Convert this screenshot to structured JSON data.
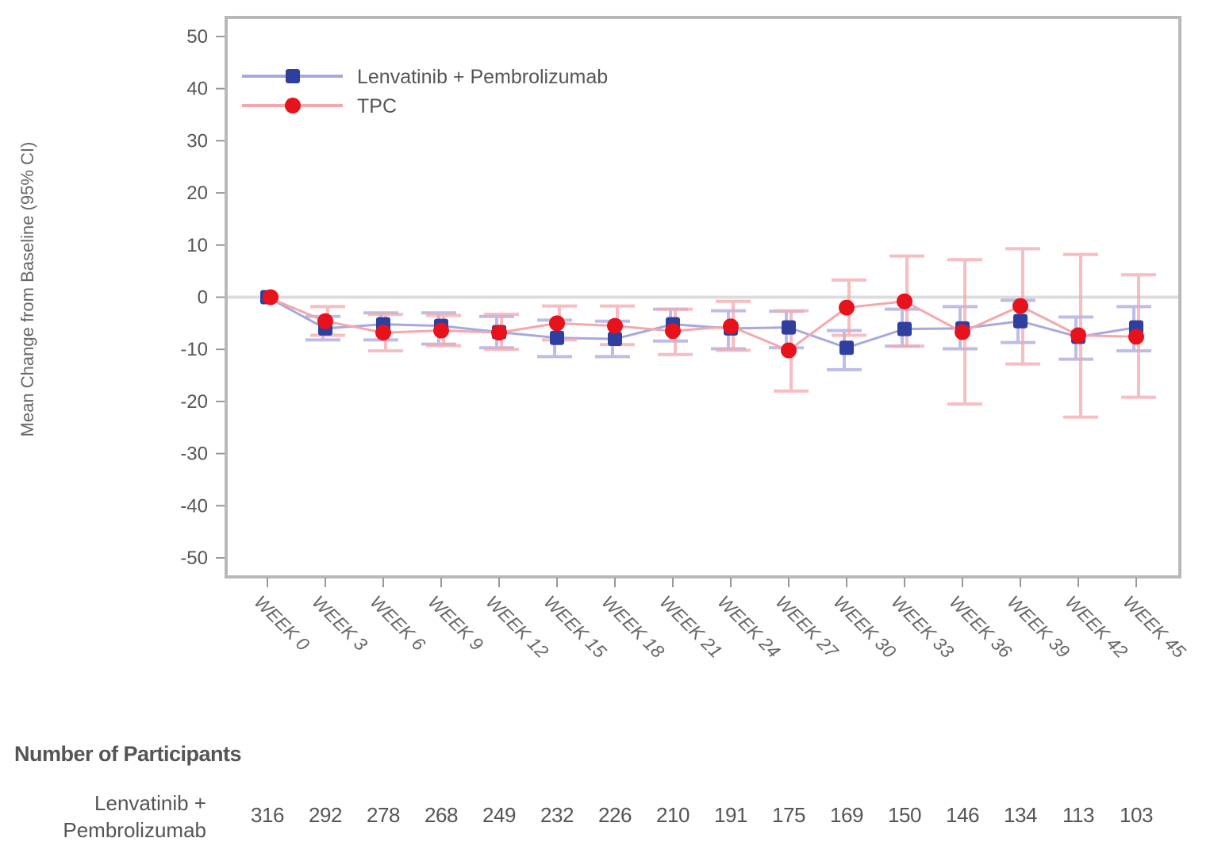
{
  "chart_data": {
    "type": "line",
    "title": "",
    "xlabel": "",
    "ylabel": "Mean Change from Baseline (95% CI)",
    "ylim": [
      -50,
      50
    ],
    "yticks": [
      50,
      40,
      30,
      20,
      10,
      0,
      -10,
      -20,
      -30,
      -40,
      -50
    ],
    "grid": false,
    "reference_line_y": 0,
    "legend_position": "upper left (inside plot)",
    "categories": [
      "WEEK 0",
      "WEEK 3",
      "WEEK 6",
      "WEEK 9",
      "WEEK 12",
      "WEEK 15",
      "WEEK 18",
      "WEEK 21",
      "WEEK 24",
      "WEEK 27",
      "WEEK 30",
      "WEEK 33",
      "WEEK 36",
      "WEEK 39",
      "WEEK 42",
      "WEEK 45"
    ],
    "series": [
      {
        "name": "Lenvatinib + Pembrolizumab",
        "color": "#2e3fa0",
        "line_color": "#a8a8e0",
        "marker": "square",
        "values": [
          0,
          -6.0,
          -5.2,
          -5.5,
          -6.7,
          -7.8,
          -8.0,
          -5.2,
          -6.0,
          -5.8,
          -9.7,
          -6.1,
          -6.0,
          -4.6,
          -7.6,
          -5.8
        ],
        "ci_lower": [
          0,
          -8.2,
          -8.2,
          -9.0,
          -9.7,
          -11.4,
          -11.4,
          -8.4,
          -9.9,
          -9.7,
          -13.9,
          -9.4,
          -9.9,
          -8.7,
          -11.9,
          -10.3
        ],
        "ci_upper": [
          0,
          -3.7,
          -3.0,
          -3.0,
          -3.7,
          -4.4,
          -4.6,
          -2.3,
          -2.6,
          -2.7,
          -6.4,
          -2.3,
          -1.8,
          -0.6,
          -3.8,
          -1.8
        ]
      },
      {
        "name": "TPC",
        "color": "#e8121c",
        "line_color": "#f5a8ac",
        "marker": "circle",
        "values": [
          0,
          -4.6,
          -6.8,
          -6.4,
          -6.8,
          -5.0,
          -5.5,
          -6.5,
          -5.6,
          -10.2,
          -2.0,
          -0.8,
          -6.7,
          -1.7,
          -7.3,
          -7.6
        ],
        "ci_lower": [
          0,
          -7.3,
          -10.3,
          -9.3,
          -10.0,
          -8.2,
          -9.1,
          -11.0,
          -10.2,
          -18.0,
          -7.3,
          -9.4,
          -20.5,
          -12.8,
          -23.0,
          -19.2
        ],
        "ci_upper": [
          0,
          -1.8,
          -3.3,
          -3.5,
          -3.3,
          -1.7,
          -1.7,
          -2.3,
          -0.8,
          -2.6,
          3.3,
          7.9,
          7.2,
          9.3,
          8.2,
          4.3
        ]
      }
    ]
  },
  "participants": {
    "title": "Number of Participants",
    "rows": [
      {
        "label": "Lenvatinib + Pembrolizumab",
        "label_line1": "Lenvatinib +",
        "label_line2": "Pembrolizumab",
        "counts": [
          316,
          292,
          278,
          268,
          249,
          232,
          226,
          210,
          191,
          175,
          169,
          150,
          146,
          134,
          113,
          103
        ]
      }
    ]
  }
}
